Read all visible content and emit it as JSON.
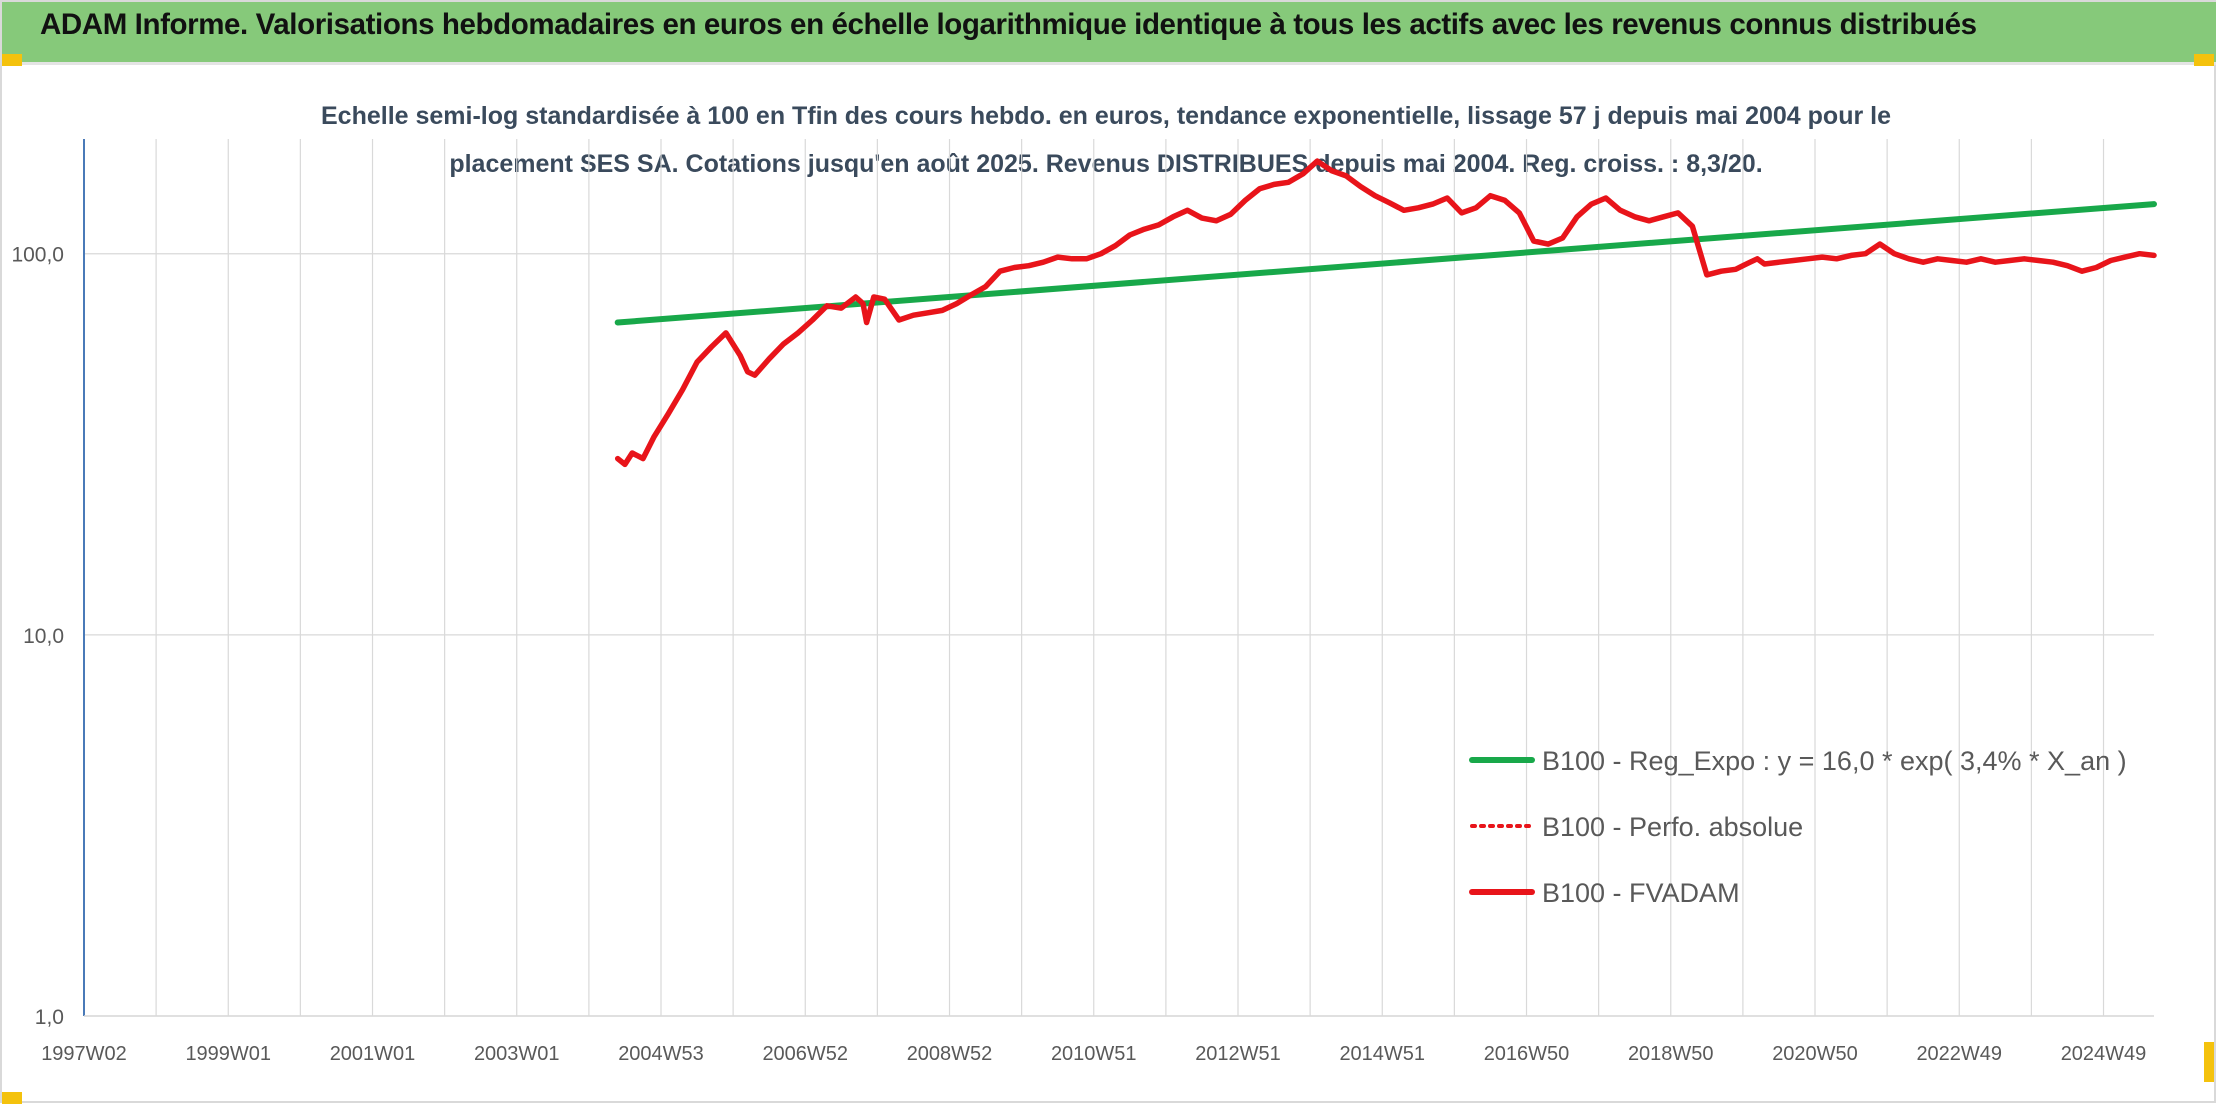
{
  "header": {
    "title": "ADAM Informe. Valorisations hebdomadaires en euros en échelle logarithmique identique à tous les actifs avec les revenus connus distribués"
  },
  "colors": {
    "header_bg": "#86c97a",
    "trend": "#18a84a",
    "fvadam": "#e8141a",
    "perfo": "#e8141a",
    "grid": "#d9d9d9",
    "axis": "#4a7ab8"
  },
  "chart_data": {
    "type": "line",
    "title": "Echelle semi-log standardisée à 100 en Tfin des cours hebdo. en euros, tendance exponentielle, lissage 57 j depuis mai 2004 pour le placement SES SA. Cotations jusqu'en août 2025. Revenus DISTRIBUES depuis mai 2004. Reg. croiss. : 8,3/20.",
    "title_lines": [
      "Echelle semi-log standardisée à 100 en Tfin des cours hebdo. en euros, tendance exponentielle, lissage 57 j depuis mai 2004 pour le",
      "placement SES SA. Cotations jusqu'en août 2025. Revenus DISTRIBUES depuis mai 2004. Reg. croiss. : 8,3/20."
    ],
    "y_scale": "log",
    "ylim": [
      1,
      200
    ],
    "xlim": [
      1997.0,
      2025.7
    ],
    "y_ticks": [
      {
        "value": 1,
        "label": "1,0"
      },
      {
        "value": 10,
        "label": "10,0"
      },
      {
        "value": 100,
        "label": "100,0"
      }
    ],
    "x_ticks": [
      {
        "value": 1997.0,
        "label": "1997W02"
      },
      {
        "value": 1999.0,
        "label": "1999W01"
      },
      {
        "value": 2001.0,
        "label": "2001W01"
      },
      {
        "value": 2003.0,
        "label": "2003W01"
      },
      {
        "value": 2005.0,
        "label": "2004W53"
      },
      {
        "value": 2007.0,
        "label": "2006W52"
      },
      {
        "value": 2009.0,
        "label": "2008W52"
      },
      {
        "value": 2011.0,
        "label": "2010W51"
      },
      {
        "value": 2013.0,
        "label": "2012W51"
      },
      {
        "value": 2015.0,
        "label": "2014W51"
      },
      {
        "value": 2017.0,
        "label": "2016W50"
      },
      {
        "value": 2019.0,
        "label": "2018W50"
      },
      {
        "value": 2021.0,
        "label": "2020W50"
      },
      {
        "value": 2023.0,
        "label": "2022W49"
      },
      {
        "value": 2025.0,
        "label": "2024W49"
      }
    ],
    "grid": true,
    "legend_position": "bottom-right",
    "series": [
      {
        "name": "B100 - Reg_Expo : y = 16,0 * exp( 3,4% *  X_an )",
        "style": "solid",
        "color": "#18a84a",
        "x": [
          2004.4,
          2025.7
        ],
        "y": [
          66,
          135
        ]
      },
      {
        "name": "B100 - Perfo. absolue",
        "style": "dotted",
        "color": "#e8141a",
        "x": [],
        "y": []
      },
      {
        "name": "B100 - FVADAM",
        "style": "solid",
        "color": "#e8141a",
        "x": [
          2004.4,
          2004.5,
          2004.6,
          2004.75,
          2004.9,
          2005.1,
          2005.3,
          2005.5,
          2005.7,
          2005.9,
          2006.1,
          2006.2,
          2006.3,
          2006.5,
          2006.7,
          2006.9,
          2007.1,
          2007.3,
          2007.5,
          2007.7,
          2007.8,
          2007.85,
          2007.95,
          2008.1,
          2008.3,
          2008.5,
          2008.7,
          2008.9,
          2009.1,
          2009.3,
          2009.5,
          2009.7,
          2009.9,
          2010.1,
          2010.3,
          2010.5,
          2010.7,
          2010.9,
          2011.1,
          2011.3,
          2011.5,
          2011.7,
          2011.9,
          2012.1,
          2012.3,
          2012.5,
          2012.7,
          2012.9,
          2013.1,
          2013.3,
          2013.5,
          2013.7,
          2013.9,
          2014.1,
          2014.3,
          2014.5,
          2014.7,
          2014.9,
          2015.1,
          2015.3,
          2015.5,
          2015.7,
          2015.9,
          2016.1,
          2016.3,
          2016.5,
          2016.7,
          2016.9,
          2017.1,
          2017.3,
          2017.5,
          2017.7,
          2017.9,
          2018.1,
          2018.3,
          2018.5,
          2018.7,
          2018.9,
          2019.1,
          2019.3,
          2019.5,
          2019.7,
          2019.9,
          2020.0,
          2020.1,
          2020.2,
          2020.3,
          2020.5,
          2020.7,
          2020.9,
          2021.1,
          2021.3,
          2021.5,
          2021.7,
          2021.9,
          2022.1,
          2022.3,
          2022.5,
          2022.7,
          2022.9,
          2023.1,
          2023.3,
          2023.5,
          2023.7,
          2023.9,
          2024.1,
          2024.3,
          2024.5,
          2024.7,
          2024.9,
          2025.1,
          2025.3,
          2025.5,
          2025.7
        ],
        "y": [
          29,
          28,
          30,
          29,
          33,
          38,
          44,
          52,
          57,
          62,
          54,
          49,
          48,
          53,
          58,
          62,
          67,
          73,
          72,
          77,
          74,
          66,
          77,
          76,
          67,
          69,
          70,
          71,
          74,
          78,
          82,
          90,
          92,
          93,
          95,
          98,
          97,
          97,
          100,
          105,
          112,
          116,
          119,
          125,
          130,
          124,
          122,
          127,
          138,
          148,
          152,
          154,
          162,
          175,
          165,
          160,
          150,
          142,
          136,
          130,
          132,
          135,
          140,
          128,
          132,
          142,
          138,
          128,
          108,
          106,
          110,
          125,
          135,
          140,
          130,
          125,
          122,
          125,
          128,
          118,
          88,
          90,
          91,
          93,
          95,
          97,
          94,
          95,
          96,
          97,
          98,
          97,
          99,
          100,
          106,
          100,
          97,
          95,
          97,
          96,
          95,
          97,
          95,
          96,
          97,
          96,
          95,
          93,
          90,
          92,
          96,
          98,
          100,
          99
        ]
      }
    ]
  }
}
